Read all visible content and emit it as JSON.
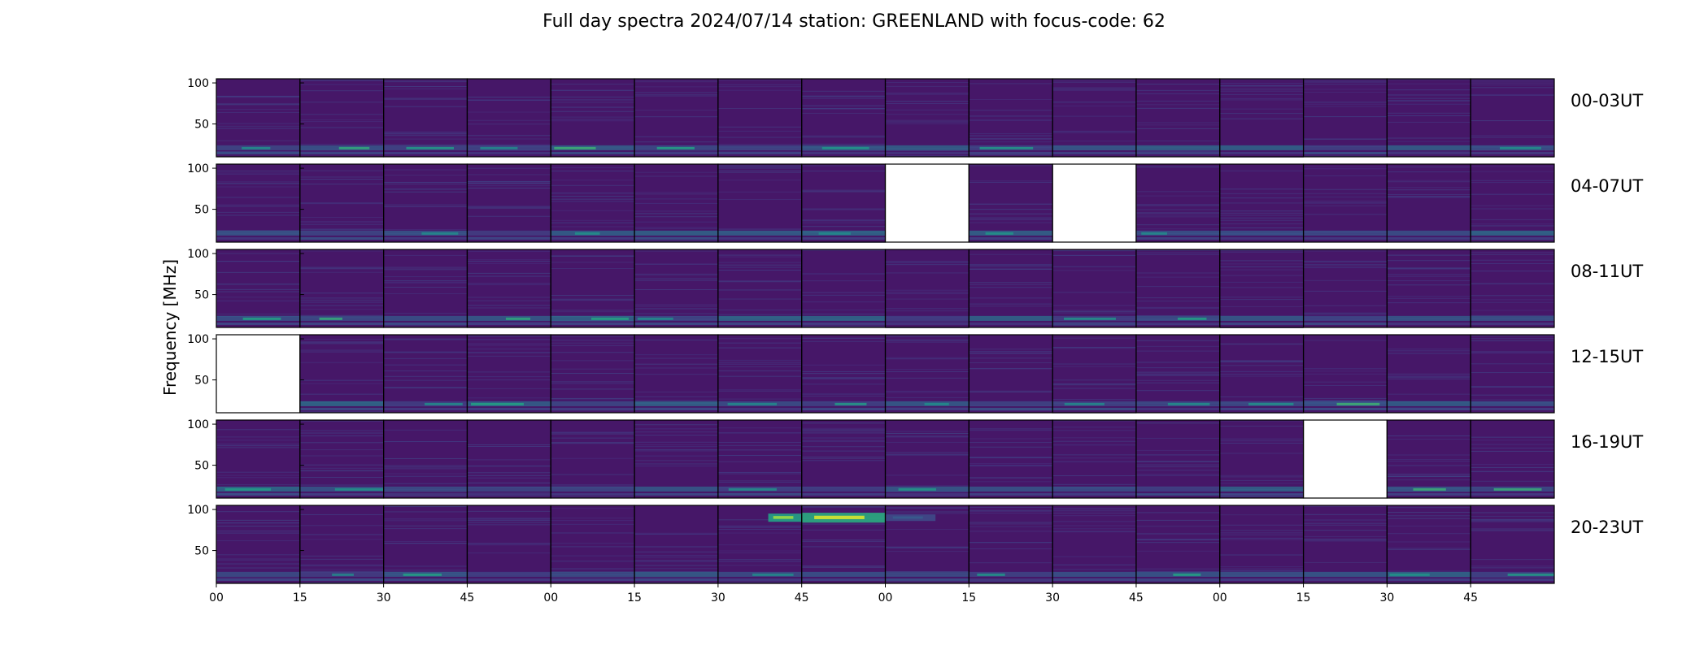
{
  "chart_data": {
    "type": "heatmap",
    "title": "Full day spectra 2024/07/14 station: GREENLAND with focus-code: 62",
    "ylabel": "Frequency [MHz]",
    "xlabel": "",
    "ylim": [
      10,
      105
    ],
    "yticks": [
      50,
      100
    ],
    "xticks": [
      "00",
      "15",
      "30",
      "45",
      "00",
      "15",
      "30",
      "45",
      "00",
      "15",
      "30",
      "45",
      "00",
      "15",
      "30",
      "45"
    ],
    "colormap": "viridis",
    "panels_per_row": 16,
    "rows": [
      {
        "label": "00-03UT",
        "missing": [],
        "bright_bands": []
      },
      {
        "label": "04-07UT",
        "missing": [
          8,
          10
        ],
        "bright_bands": []
      },
      {
        "label": "08-11UT",
        "missing": [],
        "bright_bands": []
      },
      {
        "label": "12-15UT",
        "missing": [
          0
        ],
        "bright_bands": []
      },
      {
        "label": "16-19UT",
        "missing": [
          13
        ],
        "bright_bands": []
      },
      {
        "label": "20-23UT",
        "missing": [],
        "bright_bands": [
          {
            "panel": 6,
            "freq_low": 85,
            "freq_high": 95,
            "start": 0.6,
            "end": 1.0,
            "intensity": 0.9
          },
          {
            "panel": 7,
            "freq_low": 84,
            "freq_high": 96,
            "start": 0.0,
            "end": 1.0,
            "intensity": 0.95
          },
          {
            "panel": 8,
            "freq_low": 86,
            "freq_high": 94,
            "start": 0.0,
            "end": 0.6,
            "intensity": 0.35
          }
        ]
      }
    ]
  },
  "colors": {
    "background": "#ffffff",
    "missing_panel": "#ffffff",
    "frame": "#000000",
    "text": "#000000"
  }
}
